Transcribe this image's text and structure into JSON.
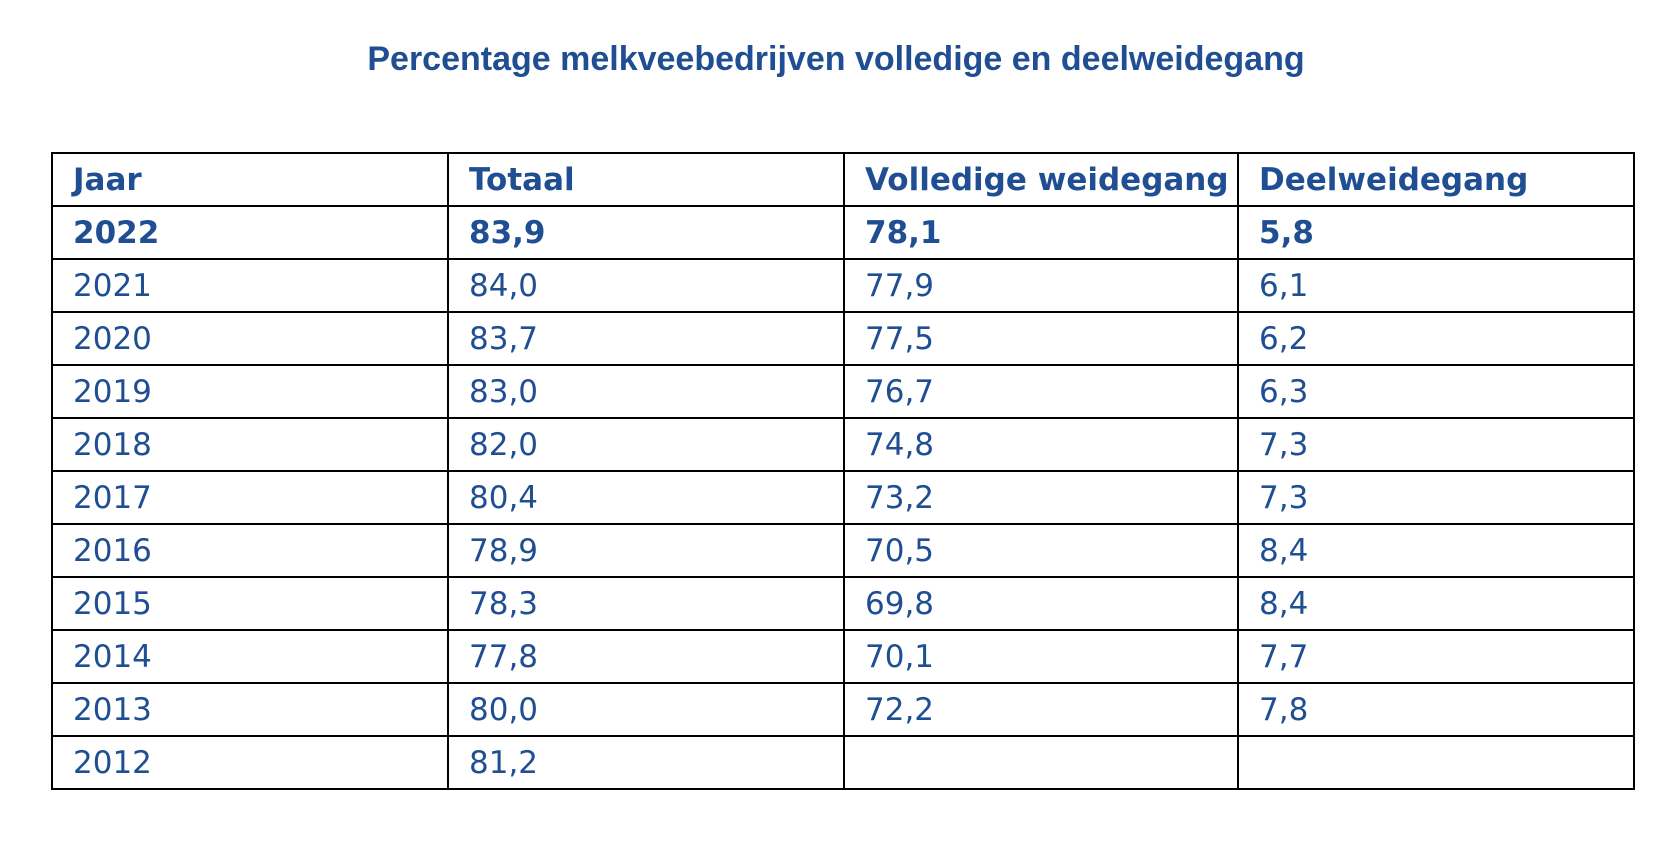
{
  "title": "Percentage melkveebedrijven volledige en deelweidegang",
  "table": {
    "headers": [
      "Jaar",
      "Totaal",
      "Volledige weidegang",
      "Deelweidegang"
    ],
    "rows": [
      [
        "2022",
        "83,9",
        "78,1",
        "5,8"
      ],
      [
        "2021",
        "84,0",
        "77,9",
        "6,1"
      ],
      [
        "2020",
        "83,7",
        "77,5",
        "6,2"
      ],
      [
        "2019",
        "83,0",
        "76,7",
        "6,3"
      ],
      [
        "2018",
        "82,0",
        "74,8",
        "7,3"
      ],
      [
        "2017",
        "80,4",
        "73,2",
        "7,3"
      ],
      [
        "2016",
        "78,9",
        "70,5",
        "8,4"
      ],
      [
        "2015",
        "78,3",
        "69,8",
        "8,4"
      ],
      [
        "2014",
        "77,8",
        "70,1",
        "7,7"
      ],
      [
        "2013",
        "80,0",
        "72,2",
        "7,8"
      ],
      [
        "2012",
        "81,2",
        "",
        ""
      ]
    ]
  },
  "colors": {
    "text": "#1f4e93",
    "border": "#000000",
    "background": "#ffffff"
  }
}
